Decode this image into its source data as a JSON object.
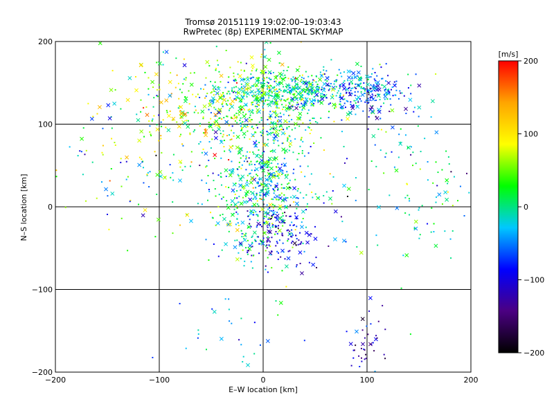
{
  "chart_data": {
    "type": "scatter",
    "title": "Tromsø 20151119 19:02:00–19:03:43",
    "subtitle": "RwPretec (8p) EXPERIMENTAL SKYMAP",
    "xlabel": "E–W location [km]",
    "ylabel": "N–S location [km]",
    "xlim": [
      -200,
      200
    ],
    "ylim": [
      -200,
      200
    ],
    "x_ticks": [
      -200,
      -100,
      0,
      100,
      200
    ],
    "y_ticks": [
      -200,
      -100,
      0,
      100,
      200
    ],
    "grid": true,
    "colorbar": {
      "label": "[m/s]",
      "range": [
        -200,
        200
      ],
      "ticks": [
        -200,
        -100,
        0,
        100,
        200
      ],
      "colormap": [
        "#000000",
        "#4b0082",
        "#0000ff",
        "#00c8ff",
        "#00ff00",
        "#ffff00",
        "#ffa500",
        "#ff0000"
      ]
    },
    "marker_legend": {
      "dot": "small point",
      "cross": "x marker"
    },
    "clusters": [
      {
        "center": [
          40,
          140
        ],
        "spread": [
          45,
          12
        ],
        "count": 420,
        "velocity_mean": -20,
        "velocity_sd": 35
      },
      {
        "center": [
          5,
          130
        ],
        "spread": [
          30,
          25
        ],
        "count": 300,
        "velocity_mean": 40,
        "velocity_sd": 40
      },
      {
        "center": [
          95,
          138
        ],
        "spread": [
          25,
          14
        ],
        "count": 140,
        "velocity_mean": -80,
        "velocity_sd": 40
      },
      {
        "center": [
          0,
          25
        ],
        "spread": [
          22,
          45
        ],
        "count": 520,
        "velocity_mean": -10,
        "velocity_sd": 45
      },
      {
        "center": [
          -60,
          120
        ],
        "spread": [
          45,
          30
        ],
        "count": 180,
        "velocity_mean": 70,
        "velocity_sd": 50
      },
      {
        "center": [
          20,
          -40
        ],
        "spread": [
          18,
          18
        ],
        "count": 120,
        "velocity_mean": -110,
        "velocity_sd": 30
      },
      {
        "center": [
          -70,
          40
        ],
        "spread": [
          55,
          55
        ],
        "count": 160,
        "velocity_mean": 30,
        "velocity_sd": 70
      },
      {
        "center": [
          160,
          20
        ],
        "spread": [
          30,
          45
        ],
        "count": 90,
        "velocity_mean": 5,
        "velocity_sd": 35
      },
      {
        "center": [
          100,
          -170
        ],
        "spread": [
          10,
          25
        ],
        "count": 50,
        "velocity_mean": -120,
        "velocity_sd": 30
      },
      {
        "center": [
          60,
          60
        ],
        "spread": [
          80,
          60
        ],
        "count": 150,
        "velocity_mean": -30,
        "velocity_sd": 70
      },
      {
        "center": [
          -140,
          80
        ],
        "spread": [
          45,
          60
        ],
        "count": 60,
        "velocity_mean": 20,
        "velocity_sd": 80
      },
      {
        "center": [
          -40,
          -150
        ],
        "spread": [
          30,
          25
        ],
        "count": 25,
        "velocity_mean": -40,
        "velocity_sd": 40
      }
    ]
  }
}
